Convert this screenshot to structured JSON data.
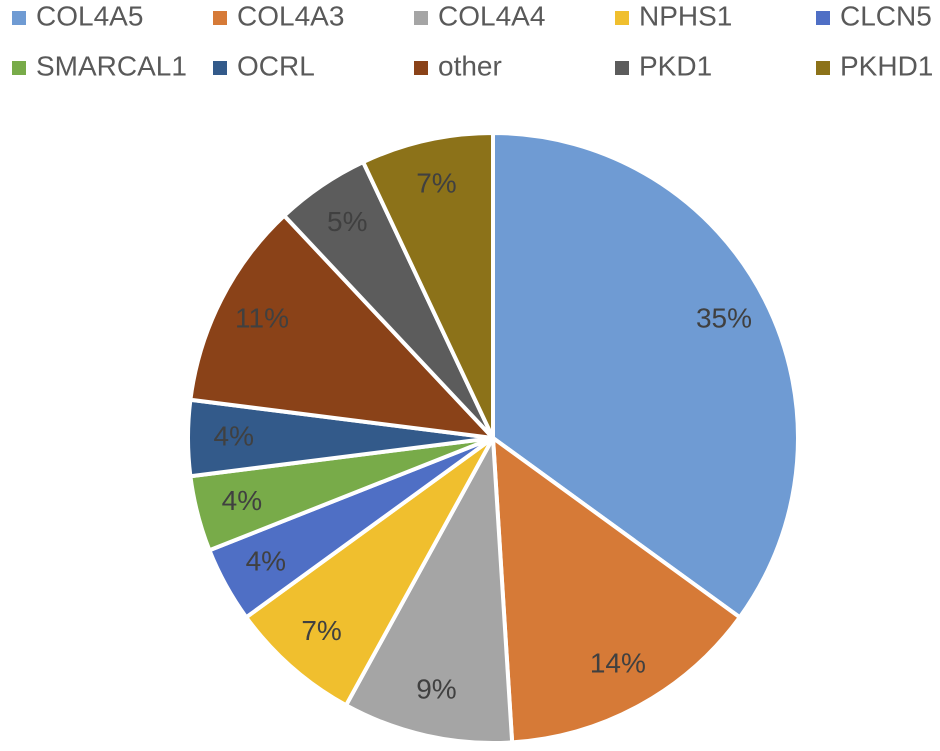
{
  "chart_data": {
    "type": "pie",
    "categories": [
      "COL4A5",
      "COL4A3",
      "COL4A4",
      "NPHS1",
      "CLCN5",
      "SMARCAL1",
      "OCRL",
      "other",
      "PKD1",
      "PKHD1"
    ],
    "values": [
      35,
      14,
      9,
      7,
      4,
      4,
      4,
      11,
      5,
      7
    ],
    "value_labels": [
      "35%",
      "14%",
      "9%",
      "7%",
      "4%",
      "4%",
      "4%",
      "11%",
      "5%",
      "7%"
    ],
    "colors": [
      "#6f9bd3",
      "#d67a37",
      "#a5a5a5",
      "#f0bf2e",
      "#4f6fc5",
      "#78ab49",
      "#335a8a",
      "#8a4218",
      "#5c5c5c",
      "#8c7219"
    ],
    "legend": "top"
  }
}
